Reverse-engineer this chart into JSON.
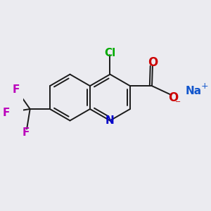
{
  "bg_color": "#ebebf0",
  "bond_color": "#1a1a1a",
  "bond_width": 1.4,
  "colors": {
    "N": "#0000cc",
    "O": "#cc0000",
    "Cl": "#00aa00",
    "F": "#bb00bb",
    "Na": "#1155cc"
  },
  "font_size": 11,
  "small_font": 9.5
}
